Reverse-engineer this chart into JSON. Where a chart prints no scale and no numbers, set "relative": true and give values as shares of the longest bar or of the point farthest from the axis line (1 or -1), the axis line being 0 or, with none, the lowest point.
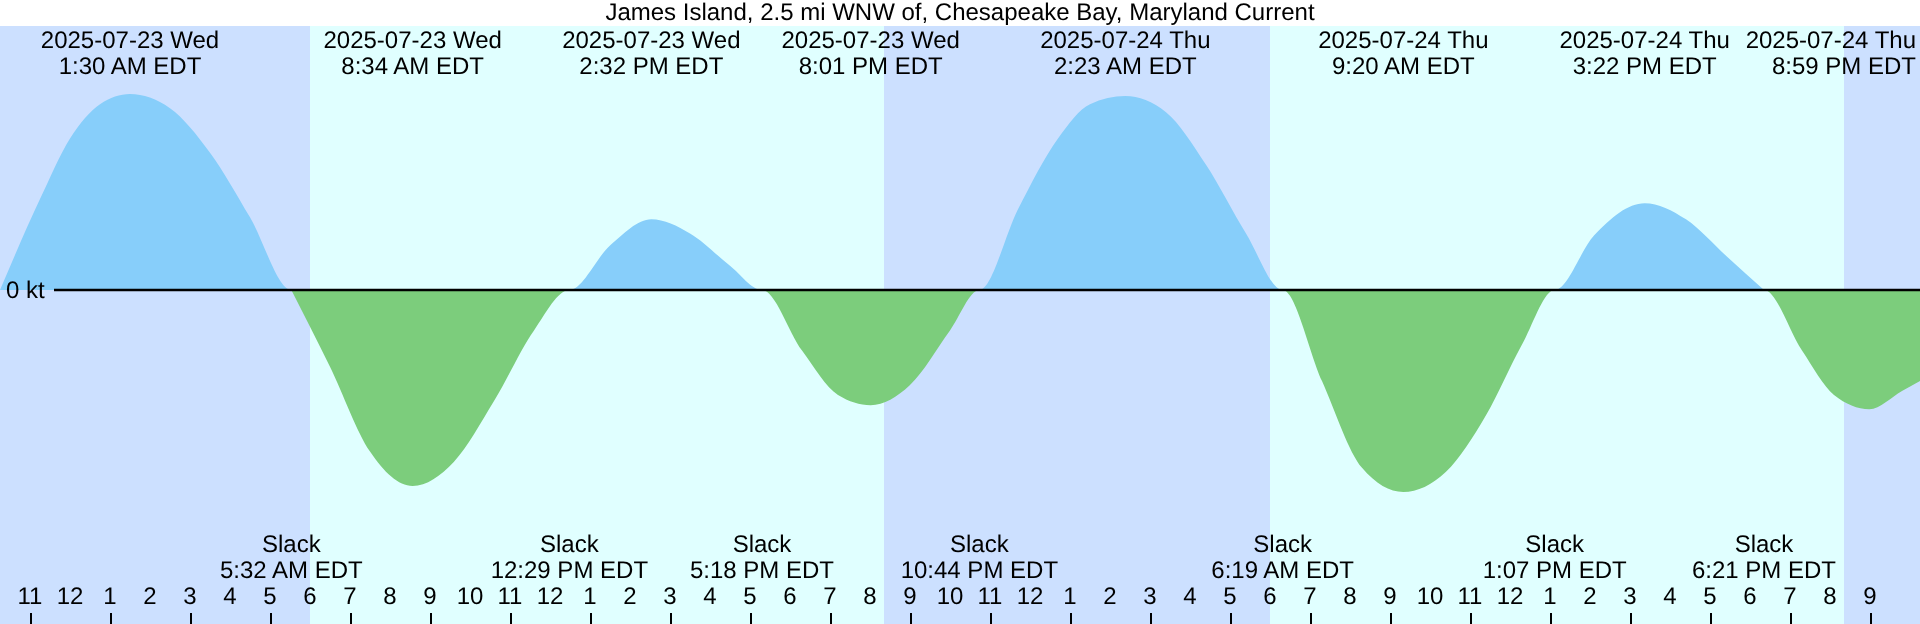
{
  "chart_data": {
    "type": "area",
    "title": "James Island, 2.5 mi WNW of, Chesapeake Bay, Maryland Current",
    "relative": true,
    "grid": false,
    "xlim": [
      "2025-07-22T22:15",
      "2025-07-24T22:15"
    ],
    "xticks": [
      {
        "value": "2025-07-22T23:00",
        "label": "11"
      },
      {
        "value": "2025-07-23T00:00",
        "label": "12"
      },
      {
        "value": "2025-07-23T01:00",
        "label": "1"
      },
      {
        "value": "2025-07-23T02:00",
        "label": "2"
      },
      {
        "value": "2025-07-23T03:00",
        "label": "3"
      },
      {
        "value": "2025-07-23T04:00",
        "label": "4"
      },
      {
        "value": "2025-07-23T05:00",
        "label": "5"
      },
      {
        "value": "2025-07-23T06:00",
        "label": "6"
      },
      {
        "value": "2025-07-23T07:00",
        "label": "7"
      },
      {
        "value": "2025-07-23T08:00",
        "label": "8"
      },
      {
        "value": "2025-07-23T09:00",
        "label": "9"
      },
      {
        "value": "2025-07-23T10:00",
        "label": "10"
      },
      {
        "value": "2025-07-23T11:00",
        "label": "11"
      },
      {
        "value": "2025-07-23T12:00",
        "label": "12"
      },
      {
        "value": "2025-07-23T13:00",
        "label": "1"
      },
      {
        "value": "2025-07-23T14:00",
        "label": "2"
      },
      {
        "value": "2025-07-23T15:00",
        "label": "3"
      },
      {
        "value": "2025-07-23T16:00",
        "label": "4"
      },
      {
        "value": "2025-07-23T17:00",
        "label": "5"
      },
      {
        "value": "2025-07-23T18:00",
        "label": "6"
      },
      {
        "value": "2025-07-23T19:00",
        "label": "7"
      },
      {
        "value": "2025-07-23T20:00",
        "label": "8"
      },
      {
        "value": "2025-07-23T21:00",
        "label": "9"
      },
      {
        "value": "2025-07-23T22:00",
        "label": "10"
      },
      {
        "value": "2025-07-23T23:00",
        "label": "11"
      },
      {
        "value": "2025-07-24T00:00",
        "label": "12"
      },
      {
        "value": "2025-07-24T01:00",
        "label": "1"
      },
      {
        "value": "2025-07-24T02:00",
        "label": "2"
      },
      {
        "value": "2025-07-24T03:00",
        "label": "3"
      },
      {
        "value": "2025-07-24T04:00",
        "label": "4"
      },
      {
        "value": "2025-07-24T05:00",
        "label": "5"
      },
      {
        "value": "2025-07-24T06:00",
        "label": "6"
      },
      {
        "value": "2025-07-24T07:00",
        "label": "7"
      },
      {
        "value": "2025-07-24T08:00",
        "label": "8"
      },
      {
        "value": "2025-07-24T09:00",
        "label": "9"
      },
      {
        "value": "2025-07-24T10:00",
        "label": "10"
      },
      {
        "value": "2025-07-24T11:00",
        "label": "11"
      },
      {
        "value": "2025-07-24T12:00",
        "label": "12"
      },
      {
        "value": "2025-07-24T13:00",
        "label": "1"
      },
      {
        "value": "2025-07-24T14:00",
        "label": "2"
      },
      {
        "value": "2025-07-24T15:00",
        "label": "3"
      },
      {
        "value": "2025-07-24T16:00",
        "label": "4"
      },
      {
        "value": "2025-07-24T17:00",
        "label": "5"
      },
      {
        "value": "2025-07-24T18:00",
        "label": "6"
      },
      {
        "value": "2025-07-24T19:00",
        "label": "7"
      },
      {
        "value": "2025-07-24T20:00",
        "label": "8"
      },
      {
        "value": "2025-07-24T21:00",
        "label": "9"
      }
    ],
    "series": [
      {
        "color": "#87cefa",
        "x": [
          "2025-07-22T22:15",
          "2025-07-22T23:15",
          "2025-07-23T00:00",
          "2025-07-23T00:45",
          "2025-07-23T01:30",
          "2025-07-23T02:30",
          "2025-07-23T03:30",
          "2025-07-23T04:30",
          "2025-07-23T05:32",
          "2025-07-23T12:29",
          "2025-07-23T13:30",
          "2025-07-23T14:32",
          "2025-07-23T15:30",
          "2025-07-23T16:30",
          "2025-07-23T17:18",
          "2025-07-23T22:44",
          "2025-07-23T23:42",
          "2025-07-24T00:42",
          "2025-07-24T01:30",
          "2025-07-24T02:23",
          "2025-07-24T03:24",
          "2025-07-24T04:24",
          "2025-07-24T05:24",
          "2025-07-24T06:19",
          "2025-07-24T13:07",
          "2025-07-24T14:06",
          "2025-07-24T15:22",
          "2025-07-24T16:24",
          "2025-07-24T17:24",
          "2025-07-24T18:21"
        ],
        "values": [
          0,
          0.45,
          0.75,
          0.92,
          0.97,
          0.9,
          0.68,
          0.36,
          0,
          0,
          0.22,
          0.35,
          0.28,
          0.12,
          0,
          0,
          0.4,
          0.75,
          0.92,
          0.96,
          0.88,
          0.62,
          0.28,
          0,
          0,
          0.27,
          0.43,
          0.35,
          0.17,
          0
        ]
      },
      {
        "color": "#7ccd7c",
        "x": [
          "2025-07-23T05:32",
          "2025-07-23T06:30",
          "2025-07-23T07:30",
          "2025-07-23T08:34",
          "2025-07-23T09:36",
          "2025-07-23T10:36",
          "2025-07-23T11:36",
          "2025-07-23T12:29",
          "2025-07-23T17:18",
          "2025-07-23T18:18",
          "2025-07-23T19:12",
          "2025-07-23T20:01",
          "2025-07-23T21:00",
          "2025-07-23T22:00",
          "2025-07-23T22:44",
          "2025-07-24T06:19",
          "2025-07-24T07:18",
          "2025-07-24T08:18",
          "2025-07-24T09:20",
          "2025-07-24T10:24",
          "2025-07-24T11:24",
          "2025-07-24T12:18",
          "2025-07-24T13:07",
          "2025-07-24T18:21",
          "2025-07-24T19:18",
          "2025-07-24T20:06",
          "2025-07-24T20:59",
          "2025-07-24T21:48",
          "2025-07-24T22:15"
        ],
        "values": [
          0,
          -0.38,
          -0.8,
          -0.97,
          -0.85,
          -0.55,
          -0.2,
          0,
          0,
          -0.3,
          -0.52,
          -0.57,
          -0.47,
          -0.2,
          0,
          0,
          -0.45,
          -0.88,
          -1,
          -0.9,
          -0.62,
          -0.27,
          0,
          0,
          -0.3,
          -0.52,
          -0.59,
          -0.5,
          -0.45
        ]
      }
    ],
    "ref_lines": [
      {
        "axis": "y",
        "value": 0,
        "label": "0 kt"
      }
    ],
    "bands": [
      {
        "axis": "x",
        "from": "2025-07-22T22:15",
        "to": "2025-07-23T06:00",
        "color": "#cce0ff"
      },
      {
        "axis": "x",
        "from": "2025-07-23T06:00",
        "to": "2025-07-23T20:21",
        "color": "#e0ffff"
      },
      {
        "axis": "x",
        "from": "2025-07-23T20:21",
        "to": "2025-07-24T06:00",
        "color": "#cce0ff"
      },
      {
        "axis": "x",
        "from": "2025-07-24T06:00",
        "to": "2025-07-24T20:21",
        "color": "#e0ffff"
      },
      {
        "axis": "x",
        "from": "2025-07-24T20:21",
        "to": "2025-07-24T22:15",
        "color": "#cce0ff"
      }
    ],
    "annotations": [
      "2025-07-23 Wed\n1:30 AM EDT",
      "2025-07-23 Wed\n8:34 AM EDT",
      "2025-07-23 Wed\n2:32 PM EDT",
      "2025-07-23 Wed\n8:01 PM EDT",
      "2025-07-24 Thu\n2:23 AM EDT",
      "2025-07-24 Thu\n9:20 AM EDT",
      "2025-07-24 Thu\n3:22 PM EDT",
      "2025-07-24 Thu\n8:59 PM EDT",
      "Slack\n5:32 AM EDT",
      "Slack\n12:29 PM EDT",
      "Slack\n5:18 PM EDT",
      "Slack\n10:44 PM EDT",
      "Slack\n6:19 AM EDT",
      "Slack\n1:07 PM EDT",
      "Slack\n6:21 PM EDT"
    ]
  }
}
